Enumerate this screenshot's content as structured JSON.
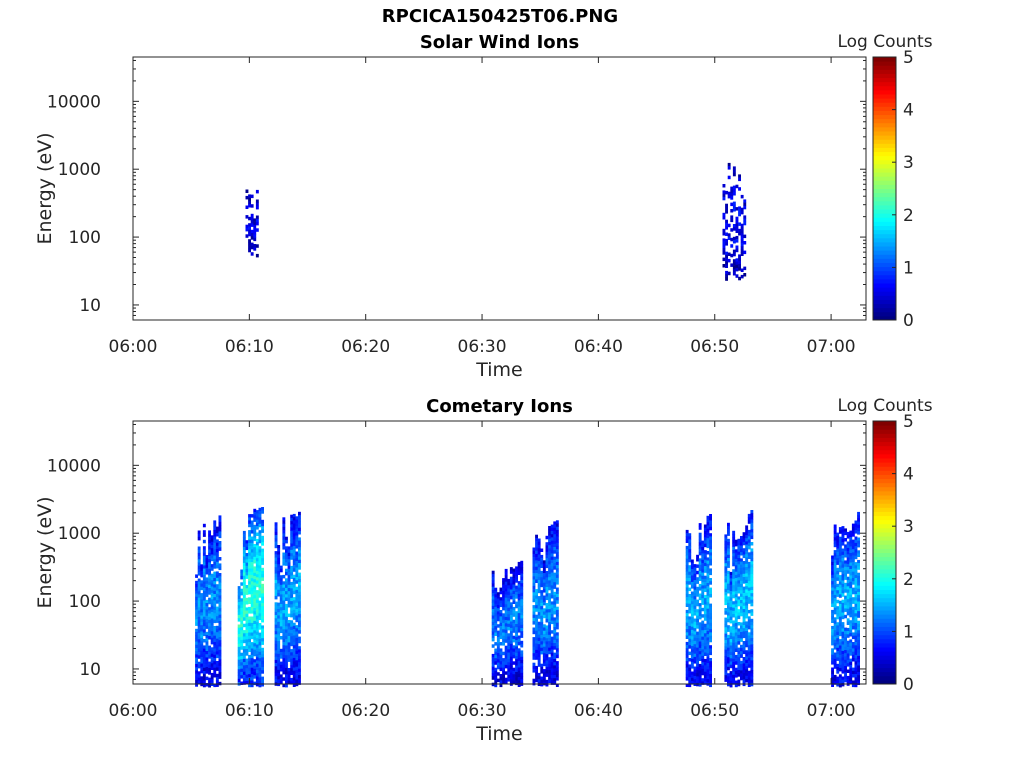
{
  "figure_title": "RPCICA150425T06.PNG",
  "colorbar": {
    "label": "Log Counts",
    "ticks": [
      0,
      1,
      2,
      3,
      4,
      5
    ],
    "colormap": "jet"
  },
  "chart_data": [
    {
      "type": "heatmap",
      "title": "Solar Wind Ions",
      "xlabel": "Time",
      "ylabel": "Energy (eV)",
      "x_ticks": [
        "06:00",
        "06:10",
        "06:20",
        "06:30",
        "06:40",
        "06:50",
        "07:00"
      ],
      "y_ticks": [
        10,
        100,
        1000,
        10000
      ],
      "y_scale": "log",
      "xlim": [
        "06:00",
        "07:03"
      ],
      "ylim": [
        6,
        45000
      ],
      "clim": [
        0,
        5
      ],
      "grid": false,
      "blobs": [
        {
          "t_start": "06:09:40",
          "t_end": "06:10:40",
          "e_min": 55,
          "e_max": 650,
          "level": 0.4
        },
        {
          "t_start": "06:50:40",
          "t_end": "06:52:40",
          "e_min": 25,
          "e_max": 1600,
          "level": 0.5
        }
      ]
    },
    {
      "type": "heatmap",
      "title": "Cometary Ions",
      "xlabel": "Time",
      "ylabel": "Energy (eV)",
      "x_ticks": [
        "06:00",
        "06:10",
        "06:20",
        "06:30",
        "06:40",
        "06:50",
        "07:00"
      ],
      "y_ticks": [
        10,
        100,
        1000,
        10000
      ],
      "y_scale": "log",
      "xlim": [
        "06:00",
        "07:03"
      ],
      "ylim": [
        6,
        45000
      ],
      "clim": [
        0,
        5
      ],
      "grid": false,
      "blobs": [
        {
          "t_start": "06:05:20",
          "t_end": "06:07:30",
          "e_min": 6,
          "e_max": 2000,
          "level": 1.1
        },
        {
          "t_start": "06:09:00",
          "t_end": "06:11:10",
          "e_min": 6,
          "e_max": 3000,
          "level": 1.7
        },
        {
          "t_start": "06:12:10",
          "t_end": "06:14:20",
          "e_min": 6,
          "e_max": 2500,
          "level": 1.2
        },
        {
          "t_start": "06:30:50",
          "t_end": "06:33:20",
          "e_min": 6,
          "e_max": 400,
          "level": 1.0
        },
        {
          "t_start": "06:34:20",
          "t_end": "06:36:30",
          "e_min": 6,
          "e_max": 1800,
          "level": 1.1
        },
        {
          "t_start": "06:47:30",
          "t_end": "06:49:40",
          "e_min": 6,
          "e_max": 2000,
          "level": 1.2
        },
        {
          "t_start": "06:50:50",
          "t_end": "06:53:10",
          "e_min": 6,
          "e_max": 2500,
          "level": 1.3
        },
        {
          "t_start": "07:00:00",
          "t_end": "07:02:20",
          "e_min": 6,
          "e_max": 2200,
          "level": 1.2
        }
      ]
    }
  ]
}
